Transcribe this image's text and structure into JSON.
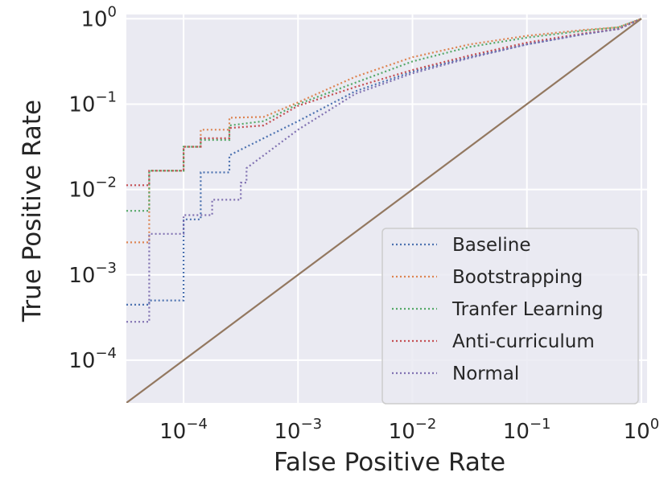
{
  "chart_data": {
    "type": "line",
    "title": "",
    "xlabel": "False Positive Rate",
    "ylabel": "True Positive Rate",
    "xscale": "log",
    "yscale": "log",
    "xlim_exp": [
      -4.5,
      0.05
    ],
    "ylim_exp": [
      -4.5,
      0.05
    ],
    "x_ticks": [
      {
        "base": "10",
        "exp": "−4",
        "value": -4
      },
      {
        "base": "10",
        "exp": "−3",
        "value": -3
      },
      {
        "base": "10",
        "exp": "−2",
        "value": -2
      },
      {
        "base": "10",
        "exp": "−1",
        "value": -1
      },
      {
        "base": "10",
        "exp": "0",
        "value": 0
      }
    ],
    "y_ticks": [
      {
        "base": "10",
        "exp": "0",
        "value": 0
      },
      {
        "base": "10",
        "exp": "−1",
        "value": -1
      },
      {
        "base": "10",
        "exp": "−2",
        "value": -2
      },
      {
        "base": "10",
        "exp": "−3",
        "value": -3
      },
      {
        "base": "10",
        "exp": "−4",
        "value": -4
      }
    ],
    "grid": true,
    "legend_position": "lower-right",
    "series": [
      {
        "name": "Baseline",
        "color": "#4c72b0",
        "dash": "dotted",
        "points": [
          [
            -4.5,
            -3.35
          ],
          [
            -4.3,
            -3.35
          ],
          [
            -4.3,
            -3.3
          ],
          [
            -4.0,
            -3.3
          ],
          [
            -4.0,
            -2.35
          ],
          [
            -3.85,
            -2.35
          ],
          [
            -3.85,
            -1.8
          ],
          [
            -3.6,
            -1.8
          ],
          [
            -3.6,
            -1.6
          ],
          [
            -3.3,
            -1.4
          ],
          [
            -3.0,
            -1.2
          ],
          [
            -2.5,
            -0.85
          ],
          [
            -2.0,
            -0.62
          ],
          [
            -1.5,
            -0.45
          ],
          [
            -1.0,
            -0.3
          ],
          [
            -0.5,
            -0.18
          ],
          [
            -0.2,
            -0.12
          ],
          [
            0,
            0
          ]
        ]
      },
      {
        "name": "Bootstrapping",
        "color": "#dd8452",
        "dash": "dotted",
        "points": [
          [
            -4.5,
            -2.62
          ],
          [
            -4.3,
            -2.62
          ],
          [
            -4.3,
            -1.78
          ],
          [
            -4.0,
            -1.78
          ],
          [
            -4.0,
            -1.5
          ],
          [
            -3.85,
            -1.5
          ],
          [
            -3.85,
            -1.3
          ],
          [
            -3.6,
            -1.3
          ],
          [
            -3.6,
            -1.16
          ],
          [
            -3.3,
            -1.15
          ],
          [
            -3.0,
            -0.98
          ],
          [
            -2.5,
            -0.68
          ],
          [
            -2.0,
            -0.45
          ],
          [
            -1.5,
            -0.3
          ],
          [
            -1.0,
            -0.2
          ],
          [
            -0.5,
            -0.13
          ],
          [
            -0.2,
            -0.1
          ],
          [
            0,
            0
          ]
        ]
      },
      {
        "name": "Tranfer Learning",
        "color": "#55a868",
        "dash": "dotted",
        "points": [
          [
            -4.5,
            -2.25
          ],
          [
            -4.3,
            -2.25
          ],
          [
            -4.3,
            -1.78
          ],
          [
            -4.0,
            -1.78
          ],
          [
            -4.0,
            -1.5
          ],
          [
            -3.85,
            -1.5
          ],
          [
            -3.85,
            -1.42
          ],
          [
            -3.6,
            -1.42
          ],
          [
            -3.6,
            -1.25
          ],
          [
            -3.3,
            -1.2
          ],
          [
            -3.0,
            -1.0
          ],
          [
            -2.5,
            -0.75
          ],
          [
            -2.0,
            -0.5
          ],
          [
            -1.5,
            -0.33
          ],
          [
            -1.0,
            -0.22
          ],
          [
            -0.5,
            -0.14
          ],
          [
            -0.2,
            -0.1
          ],
          [
            0,
            0
          ]
        ]
      },
      {
        "name": "Anti-curriculum",
        "color": "#c44e52",
        "dash": "dotted",
        "points": [
          [
            -4.5,
            -1.95
          ],
          [
            -4.3,
            -1.95
          ],
          [
            -4.3,
            -1.78
          ],
          [
            -4.0,
            -1.78
          ],
          [
            -4.0,
            -1.5
          ],
          [
            -3.85,
            -1.5
          ],
          [
            -3.85,
            -1.4
          ],
          [
            -3.6,
            -1.4
          ],
          [
            -3.6,
            -1.28
          ],
          [
            -3.3,
            -1.25
          ],
          [
            -3.0,
            -1.02
          ],
          [
            -2.5,
            -0.8
          ],
          [
            -2.0,
            -0.6
          ],
          [
            -1.5,
            -0.43
          ],
          [
            -1.0,
            -0.28
          ],
          [
            -0.5,
            -0.17
          ],
          [
            -0.2,
            -0.12
          ],
          [
            0,
            0
          ]
        ]
      },
      {
        "name": "Normal",
        "color": "#8172b2",
        "dash": "dotted",
        "points": [
          [
            -4.5,
            -3.55
          ],
          [
            -4.3,
            -3.55
          ],
          [
            -4.3,
            -2.52
          ],
          [
            -4.0,
            -2.52
          ],
          [
            -4.0,
            -2.3
          ],
          [
            -3.75,
            -2.3
          ],
          [
            -3.75,
            -2.12
          ],
          [
            -3.5,
            -2.12
          ],
          [
            -3.5,
            -1.92
          ],
          [
            -3.45,
            -1.92
          ],
          [
            -3.45,
            -1.75
          ],
          [
            -3.3,
            -1.6
          ],
          [
            -3.0,
            -1.3
          ],
          [
            -2.5,
            -0.88
          ],
          [
            -2.0,
            -0.64
          ],
          [
            -1.5,
            -0.46
          ],
          [
            -1.0,
            -0.3
          ],
          [
            -0.5,
            -0.18
          ],
          [
            -0.2,
            -0.12
          ],
          [
            0,
            0
          ]
        ]
      },
      {
        "name": "",
        "color": "#937860",
        "dash": "solid",
        "points": [
          [
            -4.5,
            -4.5
          ],
          [
            0,
            0
          ]
        ]
      }
    ]
  }
}
